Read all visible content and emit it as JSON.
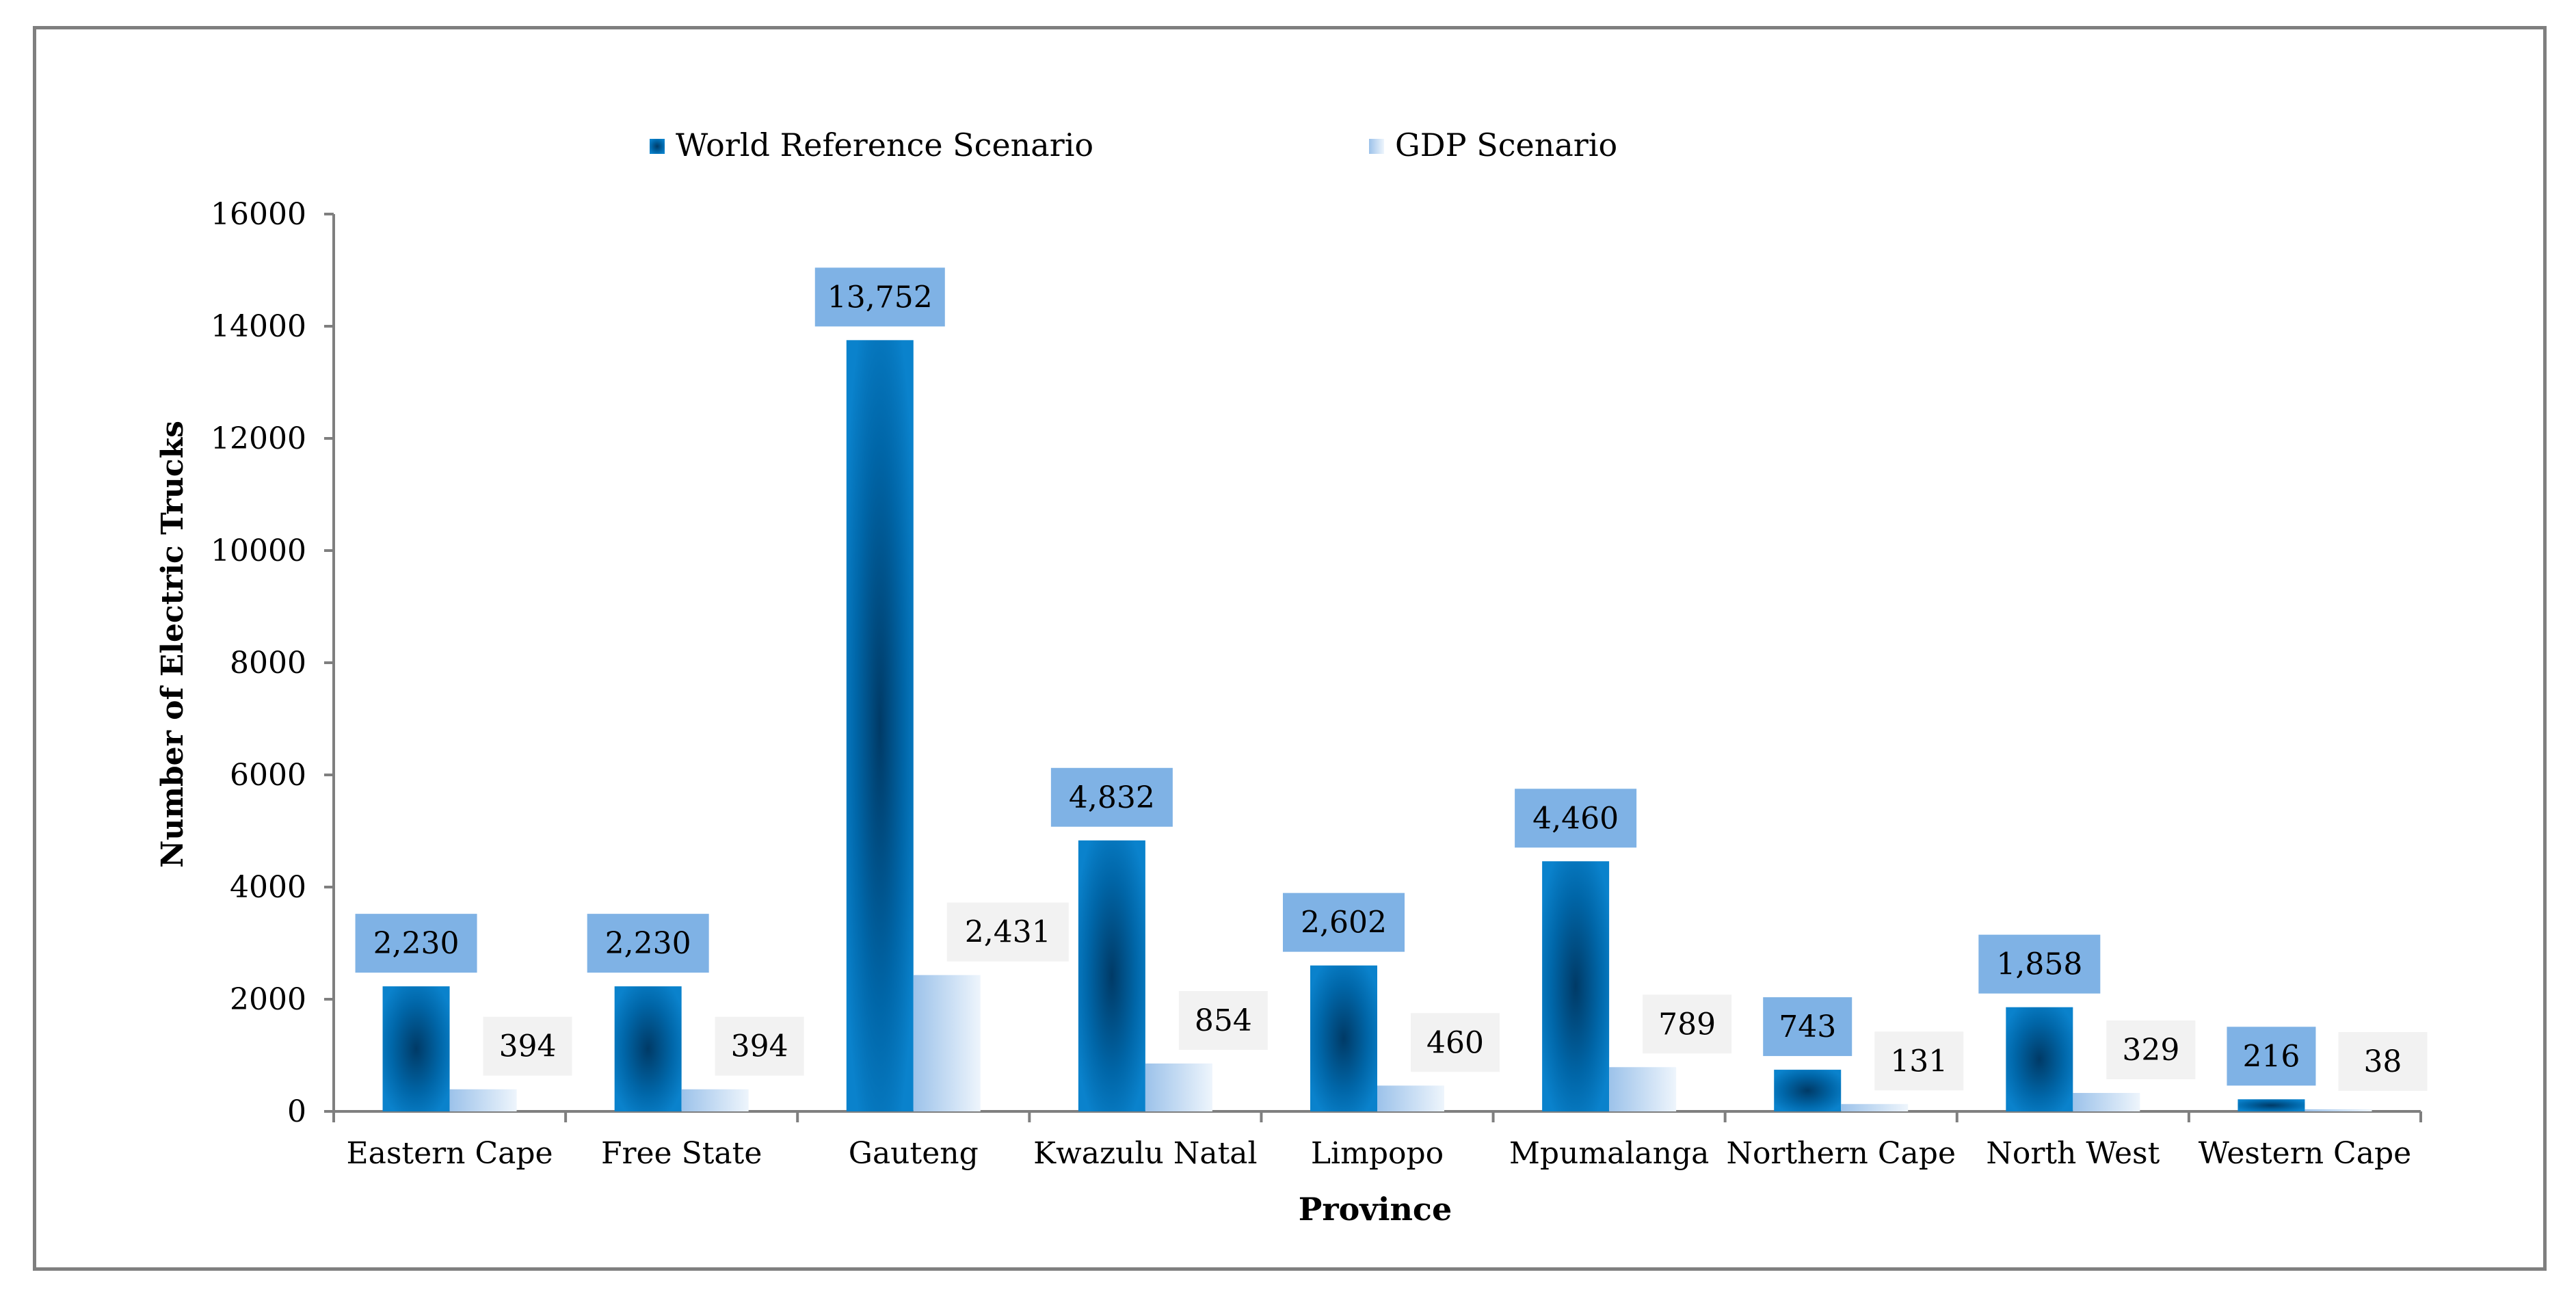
{
  "chart_data": {
    "type": "bar",
    "title": "",
    "xlabel": "Province",
    "ylabel": "Number of Electric Trucks",
    "ylim": [
      0,
      16000
    ],
    "yticks": [
      0,
      2000,
      4000,
      6000,
      8000,
      10000,
      12000,
      14000,
      16000
    ],
    "grid": false,
    "legend_position": "top",
    "categories": [
      "Eastern Cape",
      "Free State",
      "Gauteng",
      "Kwazulu Natal",
      "Limpopo",
      "Mpumalanga",
      "Northern Cape",
      "North West",
      "Western Cape"
    ],
    "series": [
      {
        "name": "World Reference Scenario",
        "color": "#0074bc",
        "values": [
          2230,
          2230,
          13752,
          4832,
          2602,
          4460,
          743,
          1858,
          216
        ],
        "labels": [
          "2,230",
          "2,230",
          "13,752",
          "4,832",
          "2,602",
          "4,460",
          "743",
          "1,858",
          "216"
        ],
        "label_bg": "#7fb2e5"
      },
      {
        "name": "GDP Scenario",
        "color": "#b8d3ef",
        "values": [
          394,
          394,
          2431,
          854,
          460,
          789,
          131,
          329,
          38
        ],
        "labels": [
          "394",
          "394",
          "2,431",
          "854",
          "460",
          "789",
          "131",
          "329",
          "38"
        ],
        "label_bg": "#f2f2f2"
      }
    ]
  }
}
